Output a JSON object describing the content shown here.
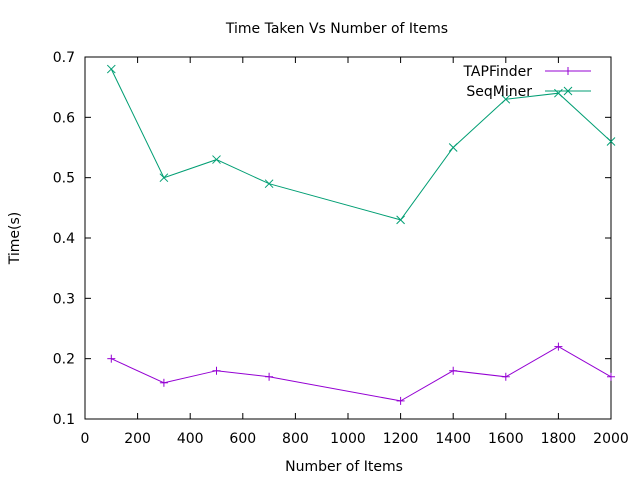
{
  "chart_data": {
    "type": "line",
    "title": "Time Taken Vs Number of Items",
    "xlabel": "Number of Items",
    "ylabel": "Time(s)",
    "xlim": [
      0,
      2000
    ],
    "ylim": [
      0.1,
      0.7
    ],
    "xticks": [
      0,
      200,
      400,
      600,
      800,
      1000,
      1200,
      1400,
      1600,
      1800,
      2000
    ],
    "yticks": [
      0.1,
      0.2,
      0.3,
      0.4,
      0.5,
      0.6,
      0.7
    ],
    "grid": false,
    "legend_position": "top-right",
    "x": [
      100,
      300,
      500,
      700,
      1200,
      1400,
      1600,
      1800,
      2000
    ],
    "series": [
      {
        "name": "TAPFinder",
        "color": "#9400d3",
        "marker": "plus",
        "values": [
          0.2,
          0.16,
          0.18,
          0.17,
          0.13,
          0.18,
          0.17,
          0.22,
          0.17
        ]
      },
      {
        "name": "SeqMiner",
        "color": "#009e73",
        "marker": "cross",
        "values": [
          0.68,
          0.5,
          0.53,
          0.49,
          0.43,
          0.55,
          0.63,
          0.64,
          0.56
        ]
      }
    ]
  }
}
